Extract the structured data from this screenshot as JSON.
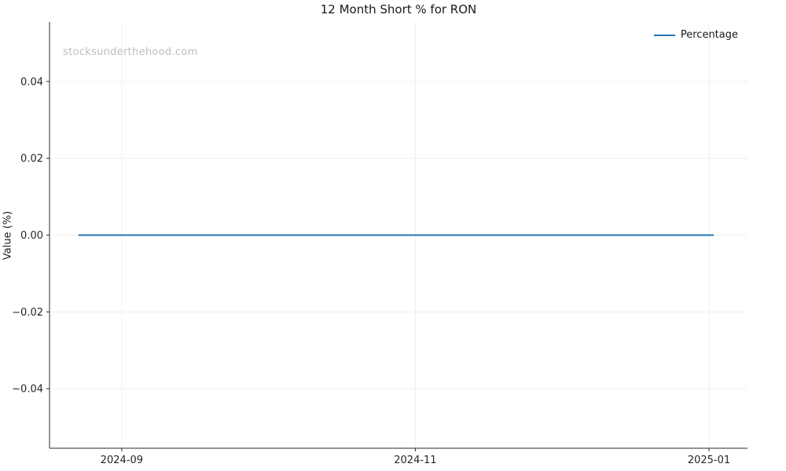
{
  "chart_data": {
    "type": "line",
    "title": "12 Month Short % for RON",
    "xlabel": "",
    "ylabel": "Value (%)",
    "watermark": "stocksunderthehood.com",
    "grid": true,
    "legend": {
      "position": "upper right",
      "entries": [
        {
          "label": "Percentage",
          "color": "#1f77b4"
        }
      ]
    },
    "x_ticks": [
      {
        "value": "2024-09-01",
        "label": "2024-09"
      },
      {
        "value": "2024-11-01",
        "label": "2024-11"
      },
      {
        "value": "2025-01-01",
        "label": "2025-01"
      }
    ],
    "y_ticks": [
      {
        "value": 0.04,
        "label": "0.04"
      },
      {
        "value": 0.02,
        "label": "0.02"
      },
      {
        "value": 0.0,
        "label": "0.00"
      },
      {
        "value": -0.02,
        "label": "−0.02"
      },
      {
        "value": -0.04,
        "label": "−0.04"
      }
    ],
    "xlim": [
      "2024-08-17",
      "2025-01-09"
    ],
    "ylim": [
      -0.0555,
      0.0555
    ],
    "series": [
      {
        "name": "Percentage",
        "color": "#1f77b4",
        "x": [
          "2024-08-23",
          "2024-09-01",
          "2024-10-01",
          "2024-11-01",
          "2024-12-01",
          "2025-01-02"
        ],
        "values": [
          0,
          0,
          0,
          0,
          0,
          0
        ]
      }
    ],
    "colors": {
      "line": "#1f77b4",
      "grid": "#efefef",
      "spine": "#2b2b2b",
      "text": "#262626",
      "watermark": "#bdbdbd"
    }
  }
}
